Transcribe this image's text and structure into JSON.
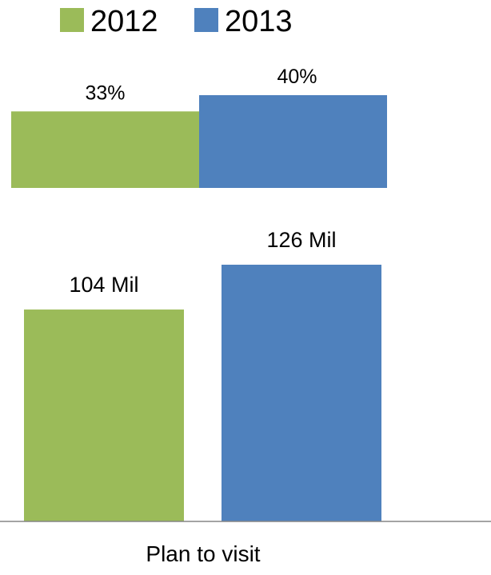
{
  "chart_data": [
    {
      "type": "bar",
      "orientation": "horizontal-stacked",
      "title": "",
      "xlabel": "",
      "ylabel": "",
      "unit": "%",
      "grid": false,
      "legend_position": "top",
      "series": [
        {
          "name": "2012",
          "color": "#9BBB59",
          "value": 33,
          "label": "33%"
        },
        {
          "name": "2013",
          "color": "#4F81BD",
          "value": 40,
          "label": "40%"
        }
      ]
    },
    {
      "type": "bar",
      "orientation": "vertical",
      "title": "",
      "xlabel": "",
      "ylabel": "",
      "unit": "Mil",
      "grid": false,
      "categories": [
        "Plan to visit"
      ],
      "series": [
        {
          "name": "2012",
          "color": "#9BBB59",
          "values": [
            104
          ],
          "label": "104 Mil"
        },
        {
          "name": "2013",
          "color": "#4F81BD",
          "values": [
            126
          ],
          "label": "126 Mil"
        }
      ]
    }
  ]
}
